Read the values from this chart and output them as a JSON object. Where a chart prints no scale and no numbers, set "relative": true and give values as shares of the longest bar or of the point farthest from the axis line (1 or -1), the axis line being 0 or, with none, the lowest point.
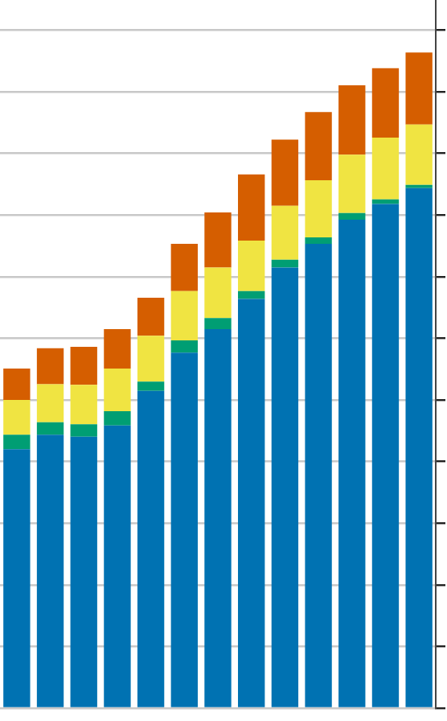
{
  "chart_data": {
    "type": "bar",
    "relative": true,
    "stacked": true,
    "grid": "y",
    "legend": false,
    "categories": [
      null,
      null,
      null,
      null,
      null,
      null,
      null,
      null,
      null,
      null,
      null,
      null,
      null
    ],
    "series": [
      {
        "color": "#0072b2",
        "values": [
          0.395,
          0.417,
          0.414,
          0.431,
          0.484,
          0.542,
          0.578,
          0.624,
          0.672,
          0.708,
          0.745,
          0.769,
          0.793
        ]
      },
      {
        "color": "#009e73",
        "values": [
          0.022,
          0.019,
          0.019,
          0.022,
          0.014,
          0.019,
          0.017,
          0.012,
          0.012,
          0.01,
          0.01,
          0.007,
          0.005
        ]
      },
      {
        "color": "#f0e442",
        "values": [
          0.053,
          0.058,
          0.06,
          0.065,
          0.07,
          0.075,
          0.077,
          0.077,
          0.082,
          0.087,
          0.089,
          0.094,
          0.092
        ]
      },
      {
        "color": "#d55e00",
        "values": [
          0.048,
          0.055,
          0.058,
          0.06,
          0.058,
          0.072,
          0.084,
          0.101,
          0.101,
          0.104,
          0.106,
          0.106,
          0.11
        ]
      }
    ]
  }
}
